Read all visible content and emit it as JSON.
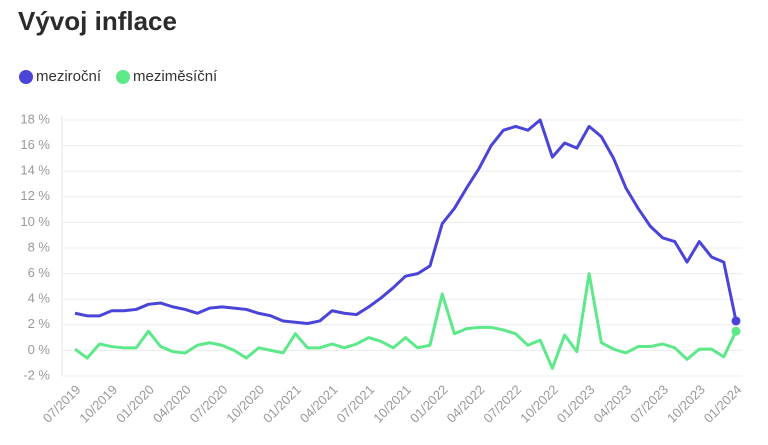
{
  "chart_data": {
    "type": "line",
    "title": "Vývoj inflace",
    "categories": [
      "07/2019",
      null,
      null,
      "10/2019",
      null,
      null,
      "01/2020",
      null,
      null,
      "04/2020",
      null,
      null,
      "07/2020",
      null,
      null,
      "10/2020",
      null,
      null,
      "01/2021",
      null,
      null,
      "04/2021",
      null,
      null,
      "07/2021",
      null,
      null,
      "10/2021",
      null,
      null,
      "01/2022",
      null,
      null,
      "04/2022",
      null,
      null,
      "07/2022",
      null,
      null,
      "10/2022",
      null,
      null,
      "01/2023",
      null,
      null,
      "04/2023",
      null,
      null,
      "07/2023",
      null,
      null,
      "10/2023",
      null,
      null,
      "01/2024"
    ],
    "series": [
      {
        "name": "meziroční",
        "color": "#4a44d8",
        "values": [
          2.9,
          2.7,
          2.7,
          3.1,
          3.1,
          3.2,
          3.6,
          3.7,
          3.4,
          3.2,
          2.9,
          3.3,
          3.4,
          3.3,
          3.2,
          2.9,
          2.7,
          2.3,
          2.2,
          2.1,
          2.3,
          3.1,
          2.9,
          2.8,
          3.4,
          4.1,
          4.9,
          5.8,
          6.0,
          6.6,
          9.9,
          11.1,
          12.7,
          14.2,
          16.0,
          17.2,
          17.5,
          17.2,
          18.0,
          15.1,
          16.2,
          15.8,
          17.5,
          16.7,
          15.0,
          12.7,
          11.1,
          9.7,
          8.8,
          8.5,
          6.9,
          8.5,
          7.3,
          6.9,
          2.3
        ]
      },
      {
        "name": "meziměsíční",
        "color": "#5de88a",
        "values": [
          0.1,
          -0.6,
          0.5,
          0.3,
          0.2,
          0.2,
          1.5,
          0.3,
          -0.1,
          -0.2,
          0.4,
          0.6,
          0.4,
          0.0,
          -0.6,
          0.2,
          0.0,
          -0.2,
          1.3,
          0.2,
          0.2,
          0.5,
          0.2,
          0.5,
          1.0,
          0.7,
          0.2,
          1.0,
          0.2,
          0.4,
          4.4,
          1.3,
          1.7,
          1.8,
          1.8,
          1.6,
          1.3,
          0.4,
          0.8,
          -1.4,
          1.2,
          -0.1,
          6.0,
          0.6,
          0.1,
          -0.2,
          0.3,
          0.3,
          0.5,
          0.2,
          -0.7,
          0.1,
          0.1,
          -0.5,
          1.5
        ]
      }
    ],
    "ylim": [
      -2,
      18
    ],
    "yticks": [
      {
        "value": -2,
        "label": "-2 %"
      },
      {
        "value": 0,
        "label": "0 %"
      },
      {
        "value": 2,
        "label": "2 %"
      },
      {
        "value": 4,
        "label": "4 %"
      },
      {
        "value": 6,
        "label": "6 %"
      },
      {
        "value": 8,
        "label": "8 %"
      },
      {
        "value": 10,
        "label": "10 %"
      },
      {
        "value": 12,
        "label": "12 %"
      },
      {
        "value": 14,
        "label": "14 %"
      },
      {
        "value": 16,
        "label": "16 %"
      },
      {
        "value": 18,
        "label": "18 %"
      }
    ],
    "grid": true,
    "legend": "top"
  }
}
